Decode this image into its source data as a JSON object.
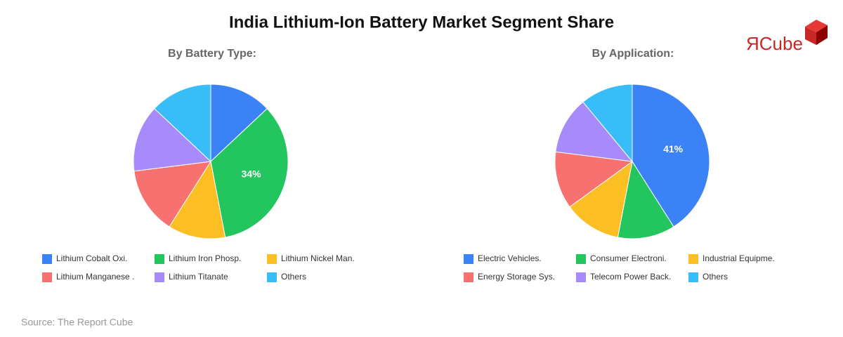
{
  "title": "India Lithium-Ion Battery Market Segment Share",
  "source": "Source: The Report Cube",
  "logo": "ЯCube",
  "chart_data": [
    {
      "type": "pie",
      "title": "By Battery Type:",
      "categories": [
        "Lithium Cobalt Oxi.",
        "Lithium Iron Phosp.",
        "Lithium Nickel Man.",
        "Lithium Manganese .",
        "Lithium Titanate",
        "Others"
      ],
      "values": [
        13,
        34,
        12,
        14,
        14,
        13
      ],
      "value_labels": [
        null,
        "34%",
        null,
        null,
        null,
        null
      ],
      "colors": [
        "#3b82f6",
        "#22c55e",
        "#fbbf24",
        "#f87171",
        "#a78bfa",
        "#38bdf8"
      ]
    },
    {
      "type": "pie",
      "title": "By Application:",
      "categories": [
        "Electric Vehicles.",
        "Consumer Electroni.",
        "Industrial Equipme.",
        "Energy Storage Sys.",
        "Telecom Power Back.",
        "Others"
      ],
      "values": [
        41,
        12,
        12,
        12,
        12,
        11
      ],
      "value_labels": [
        "41%",
        null,
        null,
        null,
        null,
        null
      ],
      "colors": [
        "#3b82f6",
        "#22c55e",
        "#fbbf24",
        "#f87171",
        "#a78bfa",
        "#38bdf8"
      ]
    }
  ]
}
